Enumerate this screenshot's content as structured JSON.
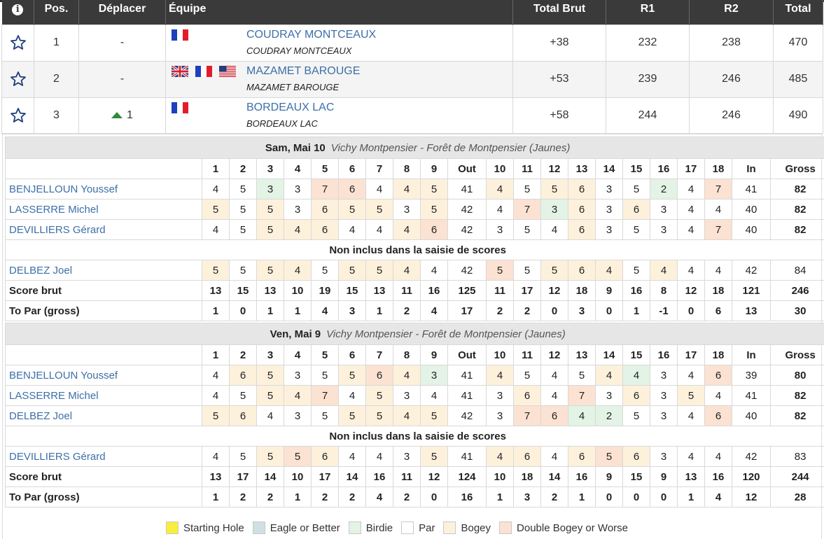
{
  "headers": {
    "info": "i",
    "pos": "Pos.",
    "move": "Déplacer",
    "team": "Équipe",
    "total_brut": "Total Brut",
    "r1": "R1",
    "r2": "R2",
    "total": "Total"
  },
  "teams": [
    {
      "pos": "1",
      "move": "-",
      "move_dir": "none",
      "flags": [
        "fr"
      ],
      "name": "COUDRAY MONTCEAUX",
      "sub": "COUDRAY MONTCEAUX",
      "total_brut": "+38",
      "r1": "232",
      "r2": "238",
      "total": "470"
    },
    {
      "pos": "2",
      "move": "-",
      "move_dir": "none",
      "flags": [
        "gb",
        "fr",
        "us"
      ],
      "name": "MAZAMET BAROUGE",
      "sub": "MAZAMET BAROUGE",
      "total_brut": "+53",
      "r1": "239",
      "r2": "246",
      "total": "485"
    },
    {
      "pos": "3",
      "move": "1",
      "move_dir": "up",
      "flags": [
        "fr"
      ],
      "name": "BORDEAUX LAC",
      "sub": "BORDEAUX LAC",
      "total_brut": "+58",
      "r1": "244",
      "r2": "246",
      "total": "490"
    }
  ],
  "columns": [
    "1",
    "2",
    "3",
    "4",
    "5",
    "6",
    "7",
    "8",
    "9",
    "Out",
    "10",
    "11",
    "12",
    "13",
    "14",
    "15",
    "16",
    "17",
    "18",
    "In",
    "Gross"
  ],
  "rounds": [
    {
      "date": "Sam, Mai 10",
      "course": "Vichy Montpensier - Forêt de Montpensier (Jaunes)",
      "players": [
        {
          "name": "BENJELLOUN Youssef",
          "scores": [
            "4",
            "5",
            "3",
            "3",
            "7",
            "6",
            "4",
            "4",
            "5",
            "41",
            "4",
            "5",
            "5",
            "6",
            "3",
            "5",
            "2",
            "4",
            "7",
            "41",
            "82"
          ],
          "classes": [
            "",
            "",
            "r",
            "",
            "d",
            "d",
            "",
            "b",
            "b",
            "",
            "b",
            "",
            "b",
            "b",
            "",
            "",
            "r",
            "",
            "d",
            "",
            ""
          ]
        },
        {
          "name": "LASSERRE Michel",
          "scores": [
            "5",
            "5",
            "5",
            "3",
            "6",
            "5",
            "5",
            "3",
            "5",
            "42",
            "4",
            "7",
            "3",
            "6",
            "3",
            "6",
            "3",
            "4",
            "4",
            "40",
            "82"
          ],
          "classes": [
            "b",
            "",
            "b",
            "",
            "b",
            "b",
            "b",
            "",
            "b",
            "",
            "",
            "d",
            "r",
            "b",
            "",
            "b",
            "",
            "",
            "",
            "",
            ""
          ]
        },
        {
          "name": "DEVILLIERS Gérard",
          "scores": [
            "4",
            "5",
            "5",
            "4",
            "6",
            "4",
            "4",
            "4",
            "6",
            "42",
            "3",
            "5",
            "4",
            "6",
            "3",
            "5",
            "3",
            "4",
            "7",
            "40",
            "82"
          ],
          "classes": [
            "",
            "",
            "b",
            "b",
            "b",
            "",
            "",
            "b",
            "d",
            "",
            "",
            "",
            "",
            "b",
            "",
            "",
            "",
            "",
            "d",
            "",
            ""
          ]
        }
      ],
      "note": "Non inclus dans la saisie de scores",
      "excluded": [
        {
          "name": "DELBEZ Joel",
          "scores": [
            "5",
            "5",
            "5",
            "4",
            "5",
            "5",
            "5",
            "4",
            "4",
            "42",
            "5",
            "5",
            "5",
            "6",
            "4",
            "5",
            "4",
            "4",
            "4",
            "42",
            "84"
          ],
          "classes": [
            "b",
            "",
            "b",
            "b",
            "",
            "b",
            "b",
            "b",
            "",
            "",
            "d",
            "",
            "b",
            "b",
            "b",
            "",
            "b",
            "",
            "",
            "",
            ""
          ]
        }
      ],
      "score_brut_label": "Score brut",
      "score_brut": [
        "13",
        "15",
        "13",
        "10",
        "19",
        "15",
        "13",
        "11",
        "16",
        "125",
        "11",
        "17",
        "12",
        "18",
        "9",
        "16",
        "8",
        "12",
        "18",
        "121",
        "246"
      ],
      "to_par_label": "To Par (gross)",
      "to_par": [
        "1",
        "0",
        "1",
        "1",
        "4",
        "3",
        "1",
        "2",
        "4",
        "17",
        "2",
        "2",
        "0",
        "3",
        "0",
        "1",
        "-1",
        "0",
        "6",
        "13",
        "30"
      ]
    },
    {
      "date": "Ven, Mai 9",
      "course": "Vichy Montpensier - Forêt de Montpensier (Jaunes)",
      "players": [
        {
          "name": "BENJELLOUN Youssef",
          "scores": [
            "4",
            "6",
            "5",
            "3",
            "5",
            "5",
            "6",
            "4",
            "3",
            "41",
            "4",
            "5",
            "4",
            "5",
            "4",
            "4",
            "3",
            "4",
            "6",
            "39",
            "80"
          ],
          "classes": [
            "",
            "b",
            "b",
            "",
            "",
            "b",
            "d",
            "b",
            "r",
            "",
            "b",
            "",
            "",
            "",
            "b",
            "r",
            "",
            "",
            "d",
            "",
            ""
          ]
        },
        {
          "name": "LASSERRE Michel",
          "scores": [
            "4",
            "5",
            "5",
            "4",
            "7",
            "4",
            "5",
            "3",
            "4",
            "41",
            "3",
            "6",
            "4",
            "7",
            "3",
            "6",
            "3",
            "5",
            "4",
            "41",
            "82"
          ],
          "classes": [
            "",
            "",
            "b",
            "b",
            "d",
            "",
            "b",
            "",
            "",
            "",
            "",
            "b",
            "",
            "d",
            "",
            "b",
            "",
            "b",
            "",
            "",
            ""
          ]
        },
        {
          "name": "DELBEZ Joel",
          "scores": [
            "5",
            "6",
            "4",
            "3",
            "5",
            "5",
            "5",
            "4",
            "5",
            "42",
            "3",
            "7",
            "6",
            "4",
            "2",
            "5",
            "3",
            "4",
            "6",
            "40",
            "82"
          ],
          "classes": [
            "b",
            "b",
            "",
            "",
            "",
            "b",
            "b",
            "b",
            "b",
            "",
            "",
            "d",
            "d",
            "r",
            "r",
            "",
            "",
            "",
            "d",
            "",
            ""
          ]
        }
      ],
      "note": "Non inclus dans la saisie de scores",
      "excluded": [
        {
          "name": "DEVILLIERS Gérard",
          "scores": [
            "4",
            "5",
            "5",
            "5",
            "6",
            "4",
            "4",
            "3",
            "5",
            "41",
            "4",
            "6",
            "4",
            "6",
            "5",
            "6",
            "3",
            "4",
            "4",
            "42",
            "83"
          ],
          "classes": [
            "",
            "",
            "b",
            "d",
            "b",
            "",
            "",
            "",
            "b",
            "",
            "b",
            "b",
            "",
            "b",
            "d",
            "b",
            "",
            "",
            "",
            "",
            ""
          ]
        }
      ],
      "score_brut_label": "Score brut",
      "score_brut": [
        "13",
        "17",
        "14",
        "10",
        "17",
        "14",
        "16",
        "11",
        "12",
        "124",
        "10",
        "18",
        "14",
        "16",
        "9",
        "15",
        "9",
        "13",
        "16",
        "120",
        "244"
      ],
      "to_par_label": "To Par (gross)",
      "to_par": [
        "1",
        "2",
        "2",
        "1",
        "2",
        "2",
        "4",
        "2",
        "0",
        "16",
        "1",
        "3",
        "2",
        "1",
        "0",
        "0",
        "0",
        "1",
        "4",
        "12",
        "28"
      ]
    }
  ],
  "legend": [
    {
      "label": "Starting Hole",
      "color": "#f7ef3a"
    },
    {
      "label": "Eagle or Better",
      "color": "#cfe0e2"
    },
    {
      "label": "Birdie",
      "color": "#e3f3e5"
    },
    {
      "label": "Par",
      "color": "#ffffff"
    },
    {
      "label": "Bogey",
      "color": "#fdf1dc"
    },
    {
      "label": "Double Bogey or Worse",
      "color": "#fbe2d2"
    }
  ]
}
